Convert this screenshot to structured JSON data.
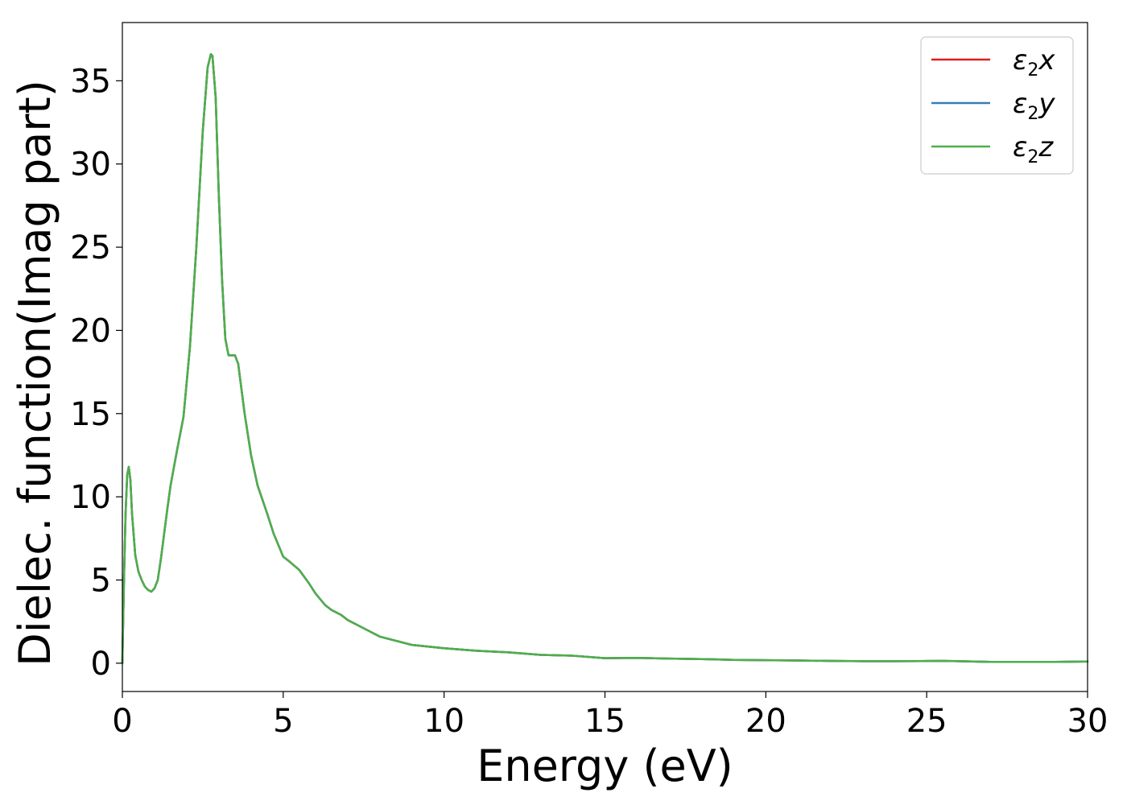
{
  "chart_data": {
    "type": "line",
    "title": "",
    "xlabel": "Energy (eV)",
    "ylabel": "Dielec. function(Imag part)",
    "xlim": [
      0,
      30
    ],
    "ylim": [
      -1.7,
      38.5
    ],
    "xticks": [
      0,
      5,
      10,
      15,
      20,
      25,
      30
    ],
    "yticks": [
      0,
      5,
      10,
      15,
      20,
      25,
      30,
      35
    ],
    "grid": false,
    "legend_position": "top-right",
    "series": [
      {
        "name": "ε₂x",
        "legend_main": "ε",
        "legend_sub": "2",
        "legend_var": "x",
        "color": "#e41a1c",
        "x": [
          0,
          0.05,
          0.1,
          0.15,
          0.2,
          0.25,
          0.3,
          0.4,
          0.5,
          0.6,
          0.7,
          0.8,
          0.9,
          1.0,
          1.1,
          1.2,
          1.3,
          1.4,
          1.5,
          1.7,
          1.9,
          2.1,
          2.3,
          2.5,
          2.65,
          2.75,
          2.8,
          2.9,
          3.0,
          3.1,
          3.2,
          3.3,
          3.4,
          3.5,
          3.6,
          3.8,
          4.0,
          4.2,
          4.5,
          4.7,
          5.0,
          5.2,
          5.5,
          5.8,
          6.0,
          6.3,
          6.5,
          6.8,
          7.0,
          7.5,
          8.0,
          9.0,
          10.0,
          11.0,
          12.0,
          13.0,
          14.0,
          15.0,
          16.0,
          17.0,
          18.0,
          19.0,
          20.0,
          21.0,
          22.0,
          23.0,
          24.0,
          25.0,
          25.5,
          26.0,
          27.0,
          28.0,
          29.0,
          30.0
        ],
        "y": [
          0,
          5.0,
          9.0,
          11.3,
          11.8,
          11.0,
          9.0,
          6.5,
          5.5,
          5.0,
          4.6,
          4.4,
          4.3,
          4.5,
          5.0,
          6.3,
          7.8,
          9.3,
          10.7,
          12.8,
          14.8,
          19.0,
          25.0,
          32.0,
          35.8,
          36.6,
          36.5,
          34.0,
          28.0,
          23.0,
          19.5,
          18.5,
          18.5,
          18.5,
          18.0,
          15.0,
          12.5,
          10.7,
          9.0,
          7.8,
          6.4,
          6.1,
          5.6,
          4.8,
          4.2,
          3.5,
          3.2,
          2.9,
          2.6,
          2.1,
          1.6,
          1.1,
          0.9,
          0.75,
          0.65,
          0.5,
          0.45,
          0.3,
          0.32,
          0.28,
          0.25,
          0.2,
          0.18,
          0.16,
          0.14,
          0.12,
          0.12,
          0.13,
          0.14,
          0.12,
          0.08,
          0.08,
          0.08,
          0.1
        ]
      },
      {
        "name": "ε₂y",
        "legend_main": "ε",
        "legend_sub": "2",
        "legend_var": "y",
        "color": "#377eb8",
        "x": [
          0,
          0.05,
          0.1,
          0.15,
          0.2,
          0.25,
          0.3,
          0.4,
          0.5,
          0.6,
          0.7,
          0.8,
          0.9,
          1.0,
          1.1,
          1.2,
          1.3,
          1.4,
          1.5,
          1.7,
          1.9,
          2.1,
          2.3,
          2.5,
          2.65,
          2.75,
          2.8,
          2.9,
          3.0,
          3.1,
          3.2,
          3.3,
          3.4,
          3.5,
          3.6,
          3.8,
          4.0,
          4.2,
          4.5,
          4.7,
          5.0,
          5.2,
          5.5,
          5.8,
          6.0,
          6.3,
          6.5,
          6.8,
          7.0,
          7.5,
          8.0,
          9.0,
          10.0,
          11.0,
          12.0,
          13.0,
          14.0,
          15.0,
          16.0,
          17.0,
          18.0,
          19.0,
          20.0,
          21.0,
          22.0,
          23.0,
          24.0,
          25.0,
          25.5,
          26.0,
          27.0,
          28.0,
          29.0,
          30.0
        ],
        "y": [
          0,
          5.0,
          9.0,
          11.3,
          11.8,
          11.0,
          9.0,
          6.5,
          5.5,
          5.0,
          4.6,
          4.4,
          4.3,
          4.5,
          5.0,
          6.3,
          7.8,
          9.3,
          10.7,
          12.8,
          14.8,
          19.0,
          25.0,
          32.0,
          35.8,
          36.6,
          36.5,
          34.0,
          28.0,
          23.0,
          19.5,
          18.5,
          18.5,
          18.5,
          18.0,
          15.0,
          12.5,
          10.7,
          9.0,
          7.8,
          6.4,
          6.1,
          5.6,
          4.8,
          4.2,
          3.5,
          3.2,
          2.9,
          2.6,
          2.1,
          1.6,
          1.1,
          0.9,
          0.75,
          0.65,
          0.5,
          0.45,
          0.3,
          0.32,
          0.28,
          0.25,
          0.2,
          0.18,
          0.16,
          0.14,
          0.12,
          0.12,
          0.13,
          0.14,
          0.12,
          0.08,
          0.08,
          0.08,
          0.1
        ]
      },
      {
        "name": "ε₂z",
        "legend_main": "ε",
        "legend_sub": "2",
        "legend_var": "z",
        "color": "#4daf4a",
        "x": [
          0,
          0.05,
          0.1,
          0.15,
          0.2,
          0.25,
          0.3,
          0.4,
          0.5,
          0.6,
          0.7,
          0.8,
          0.9,
          1.0,
          1.1,
          1.2,
          1.3,
          1.4,
          1.5,
          1.7,
          1.9,
          2.1,
          2.3,
          2.5,
          2.65,
          2.75,
          2.8,
          2.9,
          3.0,
          3.1,
          3.2,
          3.3,
          3.4,
          3.5,
          3.6,
          3.8,
          4.0,
          4.2,
          4.5,
          4.7,
          5.0,
          5.2,
          5.5,
          5.8,
          6.0,
          6.3,
          6.5,
          6.8,
          7.0,
          7.5,
          8.0,
          9.0,
          10.0,
          11.0,
          12.0,
          13.0,
          14.0,
          15.0,
          16.0,
          17.0,
          18.0,
          19.0,
          20.0,
          21.0,
          22.0,
          23.0,
          24.0,
          25.0,
          25.5,
          26.0,
          27.0,
          28.0,
          29.0,
          30.0
        ],
        "y": [
          0,
          5.0,
          9.0,
          11.3,
          11.8,
          11.0,
          9.0,
          6.5,
          5.5,
          5.0,
          4.6,
          4.4,
          4.3,
          4.5,
          5.0,
          6.3,
          7.8,
          9.3,
          10.7,
          12.8,
          14.8,
          19.0,
          25.0,
          32.0,
          35.8,
          36.6,
          36.5,
          34.0,
          28.0,
          23.0,
          19.5,
          18.5,
          18.5,
          18.5,
          18.0,
          15.0,
          12.5,
          10.7,
          9.0,
          7.8,
          6.4,
          6.1,
          5.6,
          4.8,
          4.2,
          3.5,
          3.2,
          2.9,
          2.6,
          2.1,
          1.6,
          1.1,
          0.9,
          0.75,
          0.65,
          0.5,
          0.45,
          0.3,
          0.32,
          0.28,
          0.25,
          0.2,
          0.18,
          0.16,
          0.14,
          0.12,
          0.12,
          0.13,
          0.14,
          0.12,
          0.08,
          0.08,
          0.08,
          0.1
        ]
      }
    ]
  }
}
